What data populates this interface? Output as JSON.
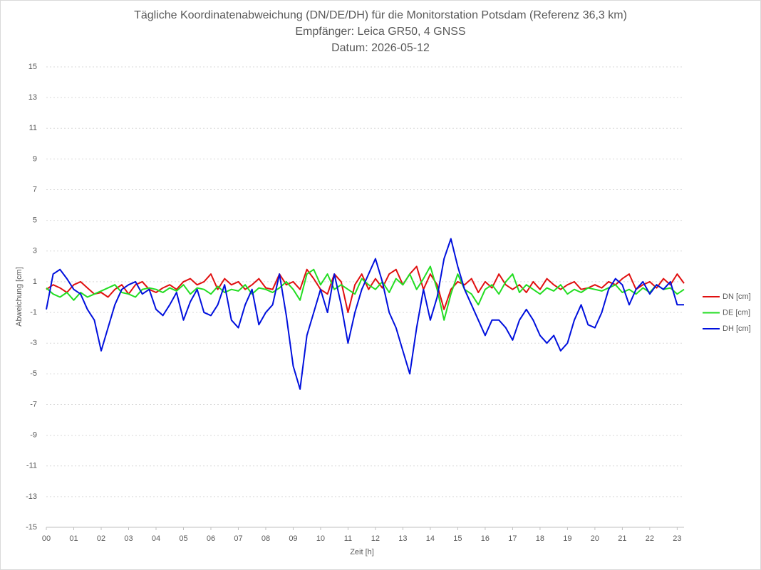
{
  "chart_data": {
    "type": "line",
    "title": [
      "Tägliche Koordinatenabweichung (DN/DE/DH) für die Monitorstation Potsdam (Referenz 36,3 km)",
      "Empfänger: Leica GR50, 4 GNSS",
      "Datum: 2026-05-12"
    ],
    "x_label": "Zeit [h]",
    "y_label": "Abweichung [cm]",
    "x": [
      0,
      0.25,
      0.5,
      0.75,
      1,
      1.25,
      1.5,
      1.75,
      2,
      2.25,
      2.5,
      2.75,
      3,
      3.25,
      3.5,
      3.75,
      4,
      4.25,
      4.5,
      4.75,
      5,
      5.25,
      5.5,
      5.75,
      6,
      6.25,
      6.5,
      6.75,
      7,
      7.25,
      7.5,
      7.75,
      8,
      8.25,
      8.5,
      8.75,
      9,
      9.25,
      9.5,
      9.75,
      10,
      10.25,
      10.5,
      10.75,
      11,
      11.25,
      11.5,
      11.75,
      12,
      12.25,
      12.5,
      12.75,
      13,
      13.25,
      13.5,
      13.75,
      14,
      14.25,
      14.5,
      14.75,
      15,
      15.25,
      15.5,
      15.75,
      16,
      16.25,
      16.5,
      16.75,
      17,
      17.25,
      17.5,
      17.75,
      18,
      18.25,
      18.5,
      18.75,
      19,
      19.25,
      19.5,
      19.75,
      20,
      20.25,
      20.5,
      20.75,
      21,
      21.25,
      21.5,
      21.75,
      22,
      22.25,
      22.5,
      22.75,
      23,
      23.25
    ],
    "series": [
      {
        "name": "DN [cm]",
        "color": "#e01010",
        "values": [
          0.5,
          0.8,
          0.6,
          0.3,
          0.8,
          1,
          0.6,
          0.2,
          0.3,
          0,
          0.5,
          0.8,
          0.2,
          0.8,
          1,
          0.5,
          0.3,
          0.6,
          0.8,
          0.5,
          1,
          1.2,
          0.8,
          1,
          1.5,
          0.5,
          1.2,
          0.8,
          1,
          0.5,
          0.8,
          1.2,
          0.6,
          0.5,
          1.5,
          0.8,
          1,
          0.5,
          1.8,
          1.2,
          0.5,
          0.2,
          1.5,
          1,
          -1,
          0.8,
          1.5,
          0.5,
          1.2,
          0.6,
          1.5,
          1.8,
          0.8,
          1.5,
          2,
          0.5,
          1.5,
          0.8,
          -0.8,
          0.5,
          1,
          0.8,
          1.2,
          0.3,
          1,
          0.6,
          1.5,
          0.8,
          0.5,
          0.8,
          0.3,
          1,
          0.5,
          1.2,
          0.8,
          0.5,
          0.8,
          1,
          0.5,
          0.6,
          0.8,
          0.6,
          1,
          0.8,
          1.2,
          1.5,
          0.5,
          0.8,
          1,
          0.6,
          1.2,
          0.8,
          1.5,
          0.9
        ]
      },
      {
        "name": "DE [cm]",
        "color": "#22dd22",
        "values": [
          0.6,
          0.2,
          0,
          0.3,
          -0.2,
          0.3,
          0,
          0.2,
          0.4,
          0.6,
          0.8,
          0.3,
          0.2,
          0,
          0.5,
          0.6,
          0.5,
          0.3,
          0.6,
          0.4,
          0.8,
          0.2,
          0.6,
          0.5,
          0.2,
          0.7,
          0.3,
          0.5,
          0.4,
          0.8,
          0.2,
          0.6,
          0.5,
          0.3,
          0.6,
          1,
          0.5,
          -0.2,
          1.5,
          1.8,
          0.8,
          1.5,
          0.5,
          0.8,
          0.5,
          0.2,
          1.2,
          0.8,
          0.5,
          1,
          0.3,
          1.2,
          0.8,
          1.5,
          0.5,
          1.2,
          2,
          0.5,
          -1.5,
          0.2,
          1.5,
          0.5,
          0.2,
          -0.5,
          0.5,
          0.8,
          0.2,
          1,
          1.5,
          0.3,
          0.8,
          0.5,
          0.2,
          0.6,
          0.4,
          0.8,
          0.2,
          0.5,
          0.3,
          0.6,
          0.5,
          0.4,
          0.6,
          0.8,
          0.3,
          0.5,
          0.2,
          0.6,
          0.3,
          0.8,
          0.5,
          0.6,
          0.2,
          0.5
        ]
      },
      {
        "name": "DH [cm]",
        "color": "#0010dd",
        "values": [
          -0.8,
          1.5,
          1.8,
          1.2,
          0.5,
          0.2,
          -0.8,
          -1.5,
          -3.5,
          -2,
          -0.5,
          0.5,
          0.8,
          1,
          0.2,
          0.5,
          -0.8,
          -1.2,
          -0.5,
          0.3,
          -1.5,
          -0.3,
          0.5,
          -1,
          -1.2,
          -0.5,
          0.8,
          -1.5,
          -2,
          -0.5,
          0.5,
          -1.8,
          -1,
          -0.5,
          1.5,
          -1.2,
          -4.5,
          -6,
          -2.5,
          -1,
          0.5,
          -1,
          1.5,
          -0.5,
          -3,
          -1,
          0.5,
          1.5,
          2.5,
          1,
          -1,
          -2,
          -3.5,
          -5,
          -2,
          0.5,
          -1.5,
          0,
          2.5,
          3.8,
          2,
          0.5,
          -0.5,
          -1.5,
          -2.5,
          -1.5,
          -1.5,
          -2,
          -2.8,
          -1.5,
          -0.8,
          -1.5,
          -2.5,
          -3,
          -2.5,
          -3.5,
          -3,
          -1.5,
          -0.5,
          -1.8,
          -2,
          -1,
          0.5,
          1.2,
          0.8,
          -0.5,
          0.5,
          1,
          0.2,
          0.8,
          0.5,
          1,
          -0.5,
          -0.5
        ]
      }
    ],
    "xlim": [
      0,
      23.25
    ],
    "xticks": [
      {
        "value": 0,
        "label": "00"
      },
      {
        "value": 1,
        "label": "01"
      },
      {
        "value": 2,
        "label": "02"
      },
      {
        "value": 3,
        "label": "03"
      },
      {
        "value": 4,
        "label": "04"
      },
      {
        "value": 5,
        "label": "05"
      },
      {
        "value": 6,
        "label": "06"
      },
      {
        "value": 7,
        "label": "07"
      },
      {
        "value": 8,
        "label": "08"
      },
      {
        "value": 9,
        "label": "09"
      },
      {
        "value": 10,
        "label": "10"
      },
      {
        "value": 11,
        "label": "11"
      },
      {
        "value": 12,
        "label": "12"
      },
      {
        "value": 13,
        "label": "13"
      },
      {
        "value": 14,
        "label": "14"
      },
      {
        "value": 15,
        "label": "15"
      },
      {
        "value": 16,
        "label": "16"
      },
      {
        "value": 17,
        "label": "17"
      },
      {
        "value": 18,
        "label": "18"
      },
      {
        "value": 19,
        "label": "19"
      },
      {
        "value": 20,
        "label": "20"
      },
      {
        "value": 21,
        "label": "21"
      },
      {
        "value": 22,
        "label": "22"
      },
      {
        "value": 23,
        "label": "23"
      }
    ],
    "ylim": [
      -15,
      15
    ],
    "yticks": [
      -15,
      -13,
      -11,
      -9,
      -7,
      -5,
      -3,
      -1,
      1,
      3,
      5,
      7,
      9,
      11,
      13,
      15
    ],
    "grid": true,
    "legend": "right"
  }
}
